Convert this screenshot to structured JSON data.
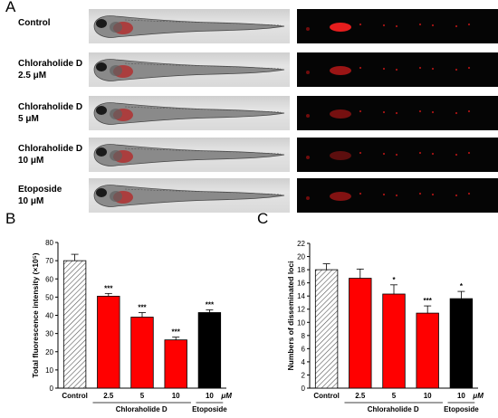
{
  "panels": {
    "A": "A",
    "B": "B",
    "C": "C"
  },
  "rows": [
    {
      "line1": "Control",
      "line2": ""
    },
    {
      "line1": "Chloraholide D",
      "line2": "2.5 μM"
    },
    {
      "line1": "Chloraholide D",
      "line2": "5 μM"
    },
    {
      "line1": "Chloraholide D",
      "line2": "10 μM"
    },
    {
      "line1": "Etoposide",
      "line2": "10 μM"
    }
  ],
  "chart_data": [
    {
      "type": "bar",
      "panel": "B",
      "ylabel": "Total fluorescence intensity (×10⁵)",
      "ylim": [
        0,
        80
      ],
      "yticks": [
        0,
        10,
        20,
        30,
        40,
        50,
        60,
        70,
        80
      ],
      "categories": [
        "Control",
        "2.5",
        "5",
        "10",
        "10"
      ],
      "unit_label": "μM",
      "group_labels": [
        "Chloraholide D",
        "Etoposide"
      ],
      "values": [
        70,
        50.5,
        39,
        26.5,
        41.5
      ],
      "errors": [
        3.5,
        1.5,
        2.5,
        1.5,
        1.5
      ],
      "significance": [
        "",
        "***",
        "***",
        "***",
        "***"
      ],
      "fills": [
        "hatched",
        "#ff0000",
        "#ff0000",
        "#ff0000",
        "#000000"
      ]
    },
    {
      "type": "bar",
      "panel": "C",
      "ylabel": "Numbers of disseminated loci",
      "ylim": [
        0,
        22
      ],
      "yticks": [
        0,
        2,
        4,
        6,
        8,
        10,
        12,
        14,
        16,
        18,
        20,
        22
      ],
      "categories": [
        "Control",
        "2.5",
        "5",
        "10",
        "10"
      ],
      "unit_label": "μM",
      "group_labels": [
        "Chloraholide D",
        "Etoposide"
      ],
      "values": [
        18,
        16.7,
        14.3,
        11.4,
        13.6
      ],
      "errors": [
        0.9,
        1.4,
        1.4,
        1.1,
        1.1
      ],
      "significance": [
        "",
        "",
        "*",
        "***",
        "*"
      ],
      "fills": [
        "hatched",
        "#ff0000",
        "#ff0000",
        "#ff0000",
        "#000000"
      ]
    }
  ]
}
